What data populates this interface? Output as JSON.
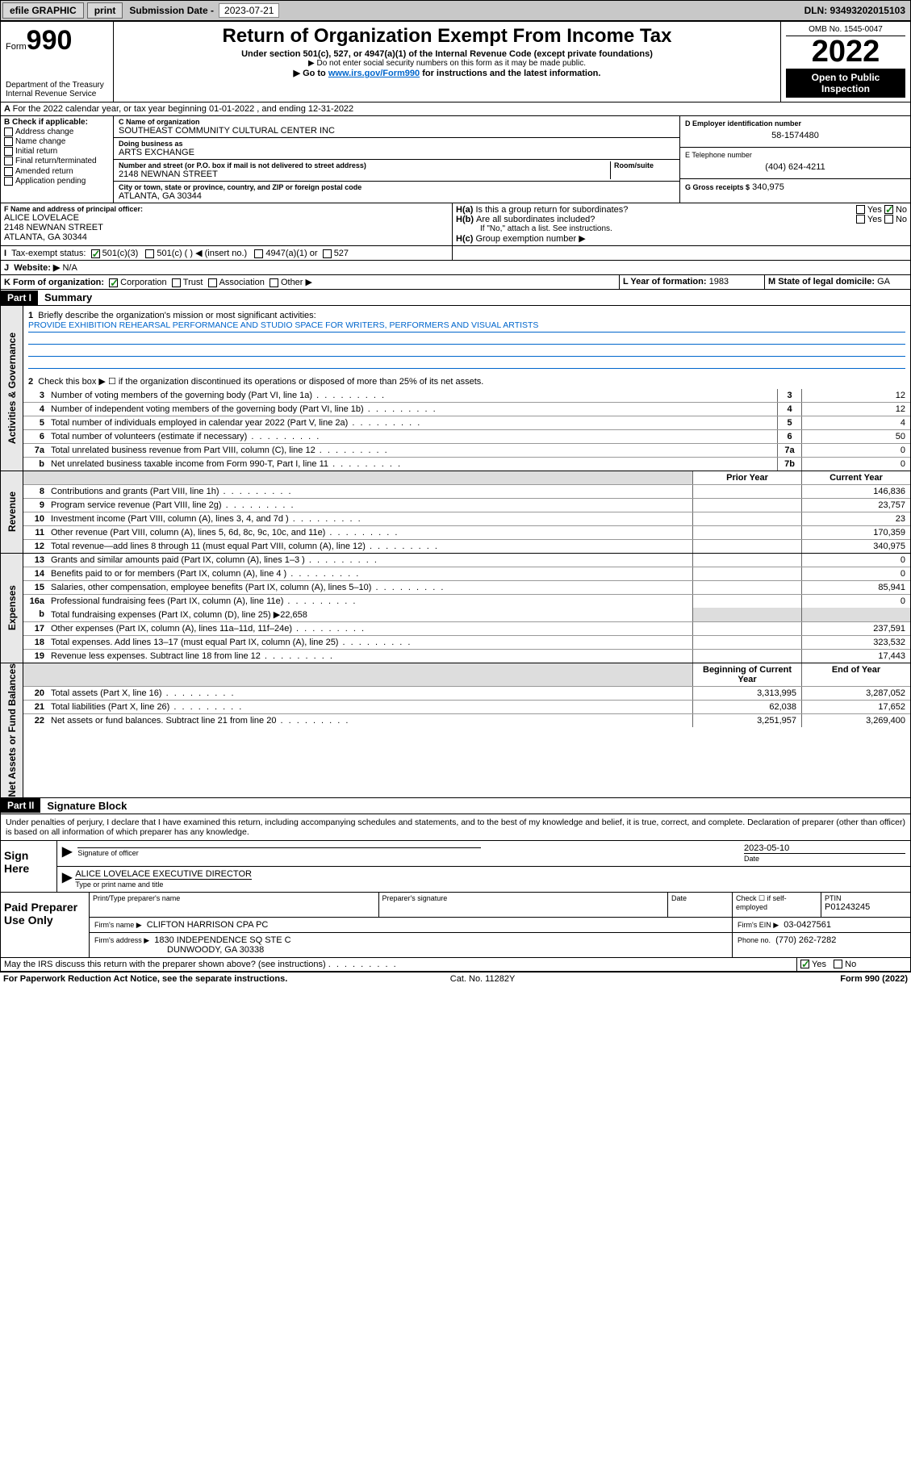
{
  "topbar": {
    "efile": "efile GRAPHIC",
    "print": "print",
    "sub_label": "Submission Date - ",
    "sub_date": "2023-07-21",
    "dln": "DLN: 93493202015103"
  },
  "header": {
    "form_label": "Form",
    "form_num": "990",
    "dept": "Department of the Treasury",
    "irs": "Internal Revenue Service",
    "title": "Return of Organization Exempt From Income Tax",
    "sub1": "Under section 501(c), 527, or 4947(a)(1) of the Internal Revenue Code (except private foundations)",
    "sub2": "Do not enter social security numbers on this form as it may be made public.",
    "sub3a": "Go to ",
    "sub3_link": "www.irs.gov/Form990",
    "sub3b": " for instructions and the latest information.",
    "omb": "OMB No. 1545-0047",
    "year": "2022",
    "inspect": "Open to Public Inspection"
  },
  "sectionA": "For the 2022 calendar year, or tax year beginning 01-01-2022   , and ending 12-31-2022",
  "blockB": {
    "title": "B Check if applicable:",
    "opts": [
      "Address change",
      "Name change",
      "Initial return",
      "Final return/terminated",
      "Amended return",
      "Application pending"
    ]
  },
  "blockC": {
    "name_lbl": "C Name of organization",
    "name": "SOUTHEAST COMMUNITY CULTURAL CENTER INC",
    "dba_lbl": "Doing business as",
    "dba": "ARTS EXCHANGE",
    "street_lbl": "Number and street (or P.O. box if mail is not delivered to street address)",
    "room_lbl": "Room/suite",
    "street": "2148 NEWNAN STREET",
    "city_lbl": "City or town, state or province, country, and ZIP or foreign postal code",
    "city": "ATLANTA, GA  30344"
  },
  "blockD": {
    "d_lbl": "D Employer identification number",
    "ein": "58-1574480",
    "e_lbl": "E Telephone number",
    "phone": "(404) 624-4211",
    "g_lbl": "G Gross receipts $",
    "gross": "340,975"
  },
  "blockF": {
    "lbl": "F Name and address of principal officer:",
    "name": "ALICE LOVELACE",
    "addr1": "2148 NEWNAN STREET",
    "addr2": "ATLANTA, GA  30344"
  },
  "blockH": {
    "ha": "Is this a group return for subordinates?",
    "hb": "Are all subordinates included?",
    "hnote": "If \"No,\" attach a list. See instructions.",
    "hc": "Group exemption number ▶"
  },
  "blockI": {
    "lbl": "Tax-exempt status:",
    "o1": "501(c)(3)",
    "o2": "501(c) (  ) ◀ (insert no.)",
    "o3": "4947(a)(1) or",
    "o4": "527"
  },
  "blockJ": {
    "lbl": "Website: ▶",
    "val": "N/A"
  },
  "blockK": {
    "lbl": "K Form of organization:",
    "opts": [
      "Corporation",
      "Trust",
      "Association",
      "Other ▶"
    ]
  },
  "blockL": {
    "lbl": "L Year of formation:",
    "val": "1983"
  },
  "blockM": {
    "lbl": "M State of legal domicile:",
    "val": "GA"
  },
  "part1": {
    "label": "Part I",
    "title": "Summary"
  },
  "mission": {
    "q": "Briefly describe the organization's mission or most significant activities:",
    "text": "PROVIDE EXHIBITION REHEARSAL PERFORMANCE AND STUDIO SPACE FOR WRITERS, PERFORMERS AND VISUAL ARTISTS"
  },
  "line2": "Check this box ▶ ☐  if the organization discontinued its operations or disposed of more than 25% of its net assets.",
  "gov_lines": [
    {
      "n": "3",
      "t": "Number of voting members of the governing body (Part VI, line 1a)",
      "box": "3",
      "v": "12"
    },
    {
      "n": "4",
      "t": "Number of independent voting members of the governing body (Part VI, line 1b)",
      "box": "4",
      "v": "12"
    },
    {
      "n": "5",
      "t": "Total number of individuals employed in calendar year 2022 (Part V, line 2a)",
      "box": "5",
      "v": "4"
    },
    {
      "n": "6",
      "t": "Total number of volunteers (estimate if necessary)",
      "box": "6",
      "v": "50"
    },
    {
      "n": "7a",
      "t": "Total unrelated business revenue from Part VIII, column (C), line 12",
      "box": "7a",
      "v": "0"
    },
    {
      "n": "b",
      "t": "Net unrelated business taxable income from Form 990-T, Part I, line 11",
      "box": "7b",
      "v": "0"
    }
  ],
  "rev_hdr": {
    "prior": "Prior Year",
    "curr": "Current Year"
  },
  "rev_lines": [
    {
      "n": "8",
      "t": "Contributions and grants (Part VIII, line 1h)",
      "p": "",
      "c": "146,836"
    },
    {
      "n": "9",
      "t": "Program service revenue (Part VIII, line 2g)",
      "p": "",
      "c": "23,757"
    },
    {
      "n": "10",
      "t": "Investment income (Part VIII, column (A), lines 3, 4, and 7d )",
      "p": "",
      "c": "23"
    },
    {
      "n": "11",
      "t": "Other revenue (Part VIII, column (A), lines 5, 6d, 8c, 9c, 10c, and 11e)",
      "p": "",
      "c": "170,359"
    },
    {
      "n": "12",
      "t": "Total revenue—add lines 8 through 11 (must equal Part VIII, column (A), line 12)",
      "p": "",
      "c": "340,975"
    }
  ],
  "exp_lines": [
    {
      "n": "13",
      "t": "Grants and similar amounts paid (Part IX, column (A), lines 1–3 )",
      "p": "",
      "c": "0"
    },
    {
      "n": "14",
      "t": "Benefits paid to or for members (Part IX, column (A), line 4 )",
      "p": "",
      "c": "0"
    },
    {
      "n": "15",
      "t": "Salaries, other compensation, employee benefits (Part IX, column (A), lines 5–10)",
      "p": "",
      "c": "85,941"
    },
    {
      "n": "16a",
      "t": "Professional fundraising fees (Part IX, column (A), line 11e)",
      "p": "",
      "c": "0"
    }
  ],
  "exp_16b": {
    "n": "b",
    "t": "Total fundraising expenses (Part IX, column (D), line 25) ▶22,658"
  },
  "exp_lines2": [
    {
      "n": "17",
      "t": "Other expenses (Part IX, column (A), lines 11a–11d, 11f–24e)",
      "p": "",
      "c": "237,591"
    },
    {
      "n": "18",
      "t": "Total expenses. Add lines 13–17 (must equal Part IX, column (A), line 25)",
      "p": "",
      "c": "323,532"
    },
    {
      "n": "19",
      "t": "Revenue less expenses. Subtract line 18 from line 12",
      "p": "",
      "c": "17,443"
    }
  ],
  "na_hdr": {
    "beg": "Beginning of Current Year",
    "end": "End of Year"
  },
  "na_lines": [
    {
      "n": "20",
      "t": "Total assets (Part X, line 16)",
      "p": "3,313,995",
      "c": "3,287,052"
    },
    {
      "n": "21",
      "t": "Total liabilities (Part X, line 26)",
      "p": "62,038",
      "c": "17,652"
    },
    {
      "n": "22",
      "t": "Net assets or fund balances. Subtract line 21 from line 20",
      "p": "3,251,957",
      "c": "3,269,400"
    }
  ],
  "part2": {
    "label": "Part II",
    "title": "Signature Block"
  },
  "penalties": "Under penalties of perjury, I declare that I have examined this return, including accompanying schedules and statements, and to the best of my knowledge and belief, it is true, correct, and complete. Declaration of preparer (other than officer) is based on all information of which preparer has any knowledge.",
  "sign": {
    "here": "Sign Here",
    "sig_lbl": "Signature of officer",
    "date_lbl": "Date",
    "date": "2023-05-10",
    "name": "ALICE LOVELACE  EXECUTIVE DIRECTOR",
    "name_lbl": "Type or print name and title"
  },
  "prep": {
    "label": "Paid Preparer Use Only",
    "h1": "Print/Type preparer's name",
    "h2": "Preparer's signature",
    "h3": "Date",
    "h4": "Check ☐ if self-employed",
    "h5_lbl": "PTIN",
    "ptin": "P01243245",
    "firm_lbl": "Firm's name   ▶",
    "firm": "CLIFTON HARRISON CPA PC",
    "ein_lbl": "Firm's EIN ▶",
    "ein": "03-0427561",
    "addr_lbl": "Firm's address ▶",
    "addr1": "1830 INDEPENDENCE SQ STE C",
    "addr2": "DUNWOODY, GA  30338",
    "phone_lbl": "Phone no.",
    "phone": "(770) 262-7282"
  },
  "may": "May the IRS discuss this return with the preparer shown above? (see instructions)",
  "footer": {
    "left": "For Paperwork Reduction Act Notice, see the separate instructions.",
    "mid": "Cat. No. 11282Y",
    "right": "Form 990 (2022)"
  },
  "sidetabs": {
    "gov": "Activities & Governance",
    "rev": "Revenue",
    "exp": "Expenses",
    "na": "Net Assets or Fund Balances"
  },
  "yes": "Yes",
  "no": "No"
}
